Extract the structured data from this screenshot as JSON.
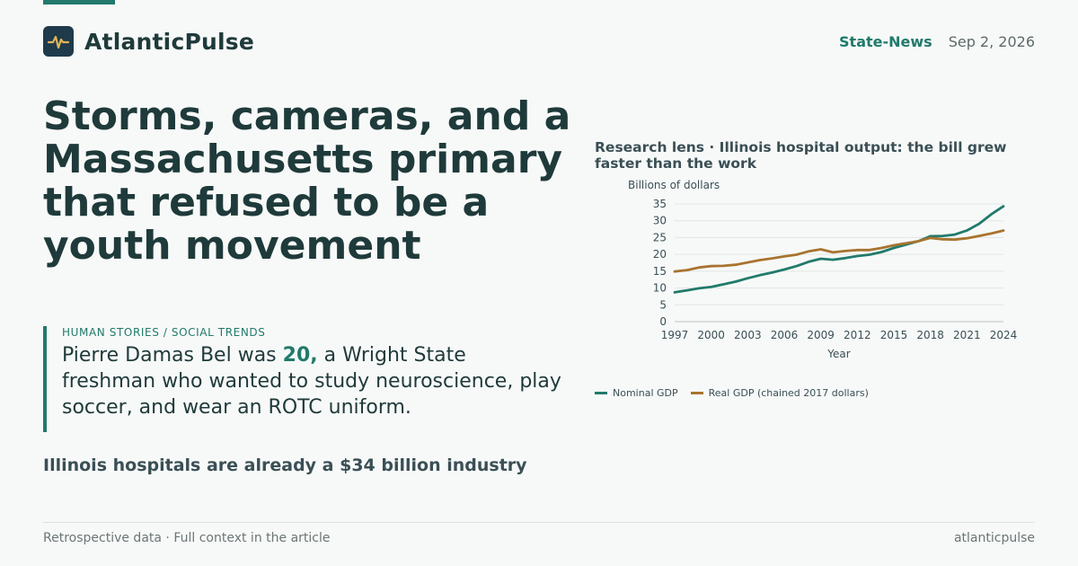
{
  "brand": {
    "name": "AtlanticPulse",
    "logo_icon": "pulse-icon",
    "accent": "#217a6b"
  },
  "header": {
    "section": "State-News",
    "date": "Sep 2, 2026"
  },
  "headline": "Storms, cameras, and a Massachusetts primary that refused to be a youth movement",
  "quote": {
    "kicker": "HUMAN STORIES / SOCIAL TRENDS",
    "text_before": "Pierre Damas Bel was ",
    "highlight": "20,",
    "text_after": " a Wright State freshman who wanted to study neuroscience, play soccer, and wear an ROTC uniform."
  },
  "subhead": "Illinois hospitals are already a $34 billion industry",
  "chart_data": {
    "type": "line",
    "title": "Research lens · Illinois hospital output: the bill grew faster than the work",
    "xlabel": "Year",
    "ylabel": "Billions of dollars",
    "ylim": [
      0,
      35
    ],
    "yticks": [
      "0",
      "5",
      "10",
      "15",
      "20",
      "25",
      "30",
      "35"
    ],
    "xticks": [
      "1997",
      "2000",
      "2003",
      "2006",
      "2009",
      "2012",
      "2015",
      "2018",
      "2021",
      "2024"
    ],
    "grid": true,
    "legend": "bottom",
    "x": [
      1997,
      1998,
      1999,
      2000,
      2001,
      2002,
      2003,
      2004,
      2005,
      2006,
      2007,
      2008,
      2009,
      2010,
      2011,
      2012,
      2013,
      2014,
      2015,
      2016,
      2017,
      2018,
      2019,
      2020,
      2021,
      2022,
      2023,
      2024
    ],
    "series": [
      {
        "name": "Nominal GDP",
        "color": "#217a6b",
        "values": [
          8.7,
          9.3,
          9.9,
          10.3,
          11.1,
          11.9,
          12.9,
          13.8,
          14.6,
          15.5,
          16.5,
          17.8,
          18.7,
          18.4,
          18.9,
          19.5,
          19.9,
          20.7,
          21.9,
          22.9,
          23.9,
          25.4,
          25.5,
          25.9,
          27.1,
          29.1,
          31.9,
          34.3
        ]
      },
      {
        "name": "Real GDP (chained 2017 dollars)",
        "color": "#a8742f",
        "values": [
          14.9,
          15.3,
          16.1,
          16.5,
          16.6,
          16.9,
          17.6,
          18.3,
          18.8,
          19.4,
          19.9,
          20.9,
          21.5,
          20.6,
          21.0,
          21.3,
          21.3,
          21.9,
          22.7,
          23.3,
          23.9,
          24.9,
          24.5,
          24.4,
          24.8,
          25.5,
          26.2,
          27.1
        ]
      }
    ]
  },
  "footer": {
    "left": "Retrospective data · Full context in the article",
    "right": "atlanticpulse"
  }
}
